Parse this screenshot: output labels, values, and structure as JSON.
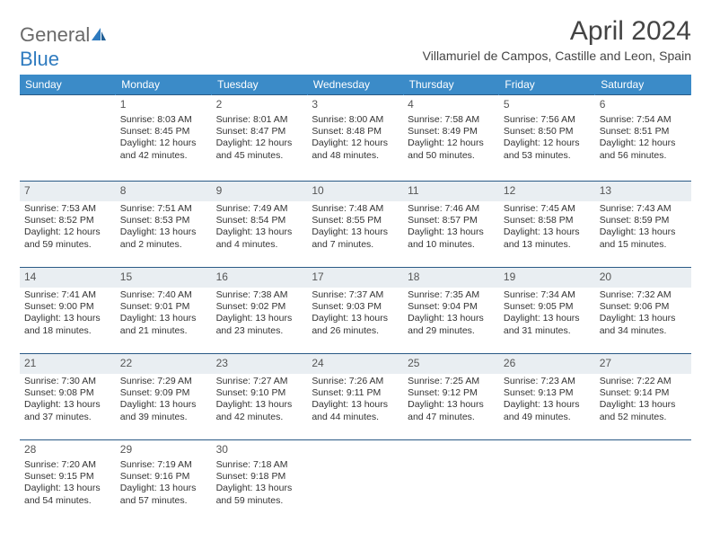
{
  "brand": {
    "name_gray": "General",
    "name_blue": "Blue"
  },
  "title": "April 2024",
  "location": "Villamuriel de Campos, Castille and Leon, Spain",
  "colors": {
    "header_bg": "#3b8bc8",
    "header_text": "#ffffff",
    "row_divider": "#2a5a86",
    "shaded_row_bg": "#e9eef2",
    "brand_gray": "#6a6a6a",
    "brand_blue": "#2f7bbf",
    "page_bg": "#ffffff",
    "body_text": "#333333"
  },
  "typography": {
    "title_fontsize": 30,
    "location_fontsize": 14,
    "weekday_fontsize": 12,
    "daynum_fontsize": 12,
    "body_fontsize": 10.5
  },
  "weekdays": [
    "Sunday",
    "Monday",
    "Tuesday",
    "Wednesday",
    "Thursday",
    "Friday",
    "Saturday"
  ],
  "weeks": [
    {
      "shaded": false,
      "days": [
        {
          "num": "",
          "sunrise": "",
          "sunset": "",
          "daylight": ""
        },
        {
          "num": "1",
          "sunrise": "Sunrise: 8:03 AM",
          "sunset": "Sunset: 8:45 PM",
          "daylight": "Daylight: 12 hours and 42 minutes."
        },
        {
          "num": "2",
          "sunrise": "Sunrise: 8:01 AM",
          "sunset": "Sunset: 8:47 PM",
          "daylight": "Daylight: 12 hours and 45 minutes."
        },
        {
          "num": "3",
          "sunrise": "Sunrise: 8:00 AM",
          "sunset": "Sunset: 8:48 PM",
          "daylight": "Daylight: 12 hours and 48 minutes."
        },
        {
          "num": "4",
          "sunrise": "Sunrise: 7:58 AM",
          "sunset": "Sunset: 8:49 PM",
          "daylight": "Daylight: 12 hours and 50 minutes."
        },
        {
          "num": "5",
          "sunrise": "Sunrise: 7:56 AM",
          "sunset": "Sunset: 8:50 PM",
          "daylight": "Daylight: 12 hours and 53 minutes."
        },
        {
          "num": "6",
          "sunrise": "Sunrise: 7:54 AM",
          "sunset": "Sunset: 8:51 PM",
          "daylight": "Daylight: 12 hours and 56 minutes."
        }
      ]
    },
    {
      "shaded": true,
      "days": [
        {
          "num": "7",
          "sunrise": "Sunrise: 7:53 AM",
          "sunset": "Sunset: 8:52 PM",
          "daylight": "Daylight: 12 hours and 59 minutes."
        },
        {
          "num": "8",
          "sunrise": "Sunrise: 7:51 AM",
          "sunset": "Sunset: 8:53 PM",
          "daylight": "Daylight: 13 hours and 2 minutes."
        },
        {
          "num": "9",
          "sunrise": "Sunrise: 7:49 AM",
          "sunset": "Sunset: 8:54 PM",
          "daylight": "Daylight: 13 hours and 4 minutes."
        },
        {
          "num": "10",
          "sunrise": "Sunrise: 7:48 AM",
          "sunset": "Sunset: 8:55 PM",
          "daylight": "Daylight: 13 hours and 7 minutes."
        },
        {
          "num": "11",
          "sunrise": "Sunrise: 7:46 AM",
          "sunset": "Sunset: 8:57 PM",
          "daylight": "Daylight: 13 hours and 10 minutes."
        },
        {
          "num": "12",
          "sunrise": "Sunrise: 7:45 AM",
          "sunset": "Sunset: 8:58 PM",
          "daylight": "Daylight: 13 hours and 13 minutes."
        },
        {
          "num": "13",
          "sunrise": "Sunrise: 7:43 AM",
          "sunset": "Sunset: 8:59 PM",
          "daylight": "Daylight: 13 hours and 15 minutes."
        }
      ]
    },
    {
      "shaded": true,
      "days": [
        {
          "num": "14",
          "sunrise": "Sunrise: 7:41 AM",
          "sunset": "Sunset: 9:00 PM",
          "daylight": "Daylight: 13 hours and 18 minutes."
        },
        {
          "num": "15",
          "sunrise": "Sunrise: 7:40 AM",
          "sunset": "Sunset: 9:01 PM",
          "daylight": "Daylight: 13 hours and 21 minutes."
        },
        {
          "num": "16",
          "sunrise": "Sunrise: 7:38 AM",
          "sunset": "Sunset: 9:02 PM",
          "daylight": "Daylight: 13 hours and 23 minutes."
        },
        {
          "num": "17",
          "sunrise": "Sunrise: 7:37 AM",
          "sunset": "Sunset: 9:03 PM",
          "daylight": "Daylight: 13 hours and 26 minutes."
        },
        {
          "num": "18",
          "sunrise": "Sunrise: 7:35 AM",
          "sunset": "Sunset: 9:04 PM",
          "daylight": "Daylight: 13 hours and 29 minutes."
        },
        {
          "num": "19",
          "sunrise": "Sunrise: 7:34 AM",
          "sunset": "Sunset: 9:05 PM",
          "daylight": "Daylight: 13 hours and 31 minutes."
        },
        {
          "num": "20",
          "sunrise": "Sunrise: 7:32 AM",
          "sunset": "Sunset: 9:06 PM",
          "daylight": "Daylight: 13 hours and 34 minutes."
        }
      ]
    },
    {
      "shaded": true,
      "days": [
        {
          "num": "21",
          "sunrise": "Sunrise: 7:30 AM",
          "sunset": "Sunset: 9:08 PM",
          "daylight": "Daylight: 13 hours and 37 minutes."
        },
        {
          "num": "22",
          "sunrise": "Sunrise: 7:29 AM",
          "sunset": "Sunset: 9:09 PM",
          "daylight": "Daylight: 13 hours and 39 minutes."
        },
        {
          "num": "23",
          "sunrise": "Sunrise: 7:27 AM",
          "sunset": "Sunset: 9:10 PM",
          "daylight": "Daylight: 13 hours and 42 minutes."
        },
        {
          "num": "24",
          "sunrise": "Sunrise: 7:26 AM",
          "sunset": "Sunset: 9:11 PM",
          "daylight": "Daylight: 13 hours and 44 minutes."
        },
        {
          "num": "25",
          "sunrise": "Sunrise: 7:25 AM",
          "sunset": "Sunset: 9:12 PM",
          "daylight": "Daylight: 13 hours and 47 minutes."
        },
        {
          "num": "26",
          "sunrise": "Sunrise: 7:23 AM",
          "sunset": "Sunset: 9:13 PM",
          "daylight": "Daylight: 13 hours and 49 minutes."
        },
        {
          "num": "27",
          "sunrise": "Sunrise: 7:22 AM",
          "sunset": "Sunset: 9:14 PM",
          "daylight": "Daylight: 13 hours and 52 minutes."
        }
      ]
    },
    {
      "shaded": false,
      "days": [
        {
          "num": "28",
          "sunrise": "Sunrise: 7:20 AM",
          "sunset": "Sunset: 9:15 PM",
          "daylight": "Daylight: 13 hours and 54 minutes."
        },
        {
          "num": "29",
          "sunrise": "Sunrise: 7:19 AM",
          "sunset": "Sunset: 9:16 PM",
          "daylight": "Daylight: 13 hours and 57 minutes."
        },
        {
          "num": "30",
          "sunrise": "Sunrise: 7:18 AM",
          "sunset": "Sunset: 9:18 PM",
          "daylight": "Daylight: 13 hours and 59 minutes."
        },
        {
          "num": "",
          "sunrise": "",
          "sunset": "",
          "daylight": ""
        },
        {
          "num": "",
          "sunrise": "",
          "sunset": "",
          "daylight": ""
        },
        {
          "num": "",
          "sunrise": "",
          "sunset": "",
          "daylight": ""
        },
        {
          "num": "",
          "sunrise": "",
          "sunset": "",
          "daylight": ""
        }
      ]
    }
  ]
}
